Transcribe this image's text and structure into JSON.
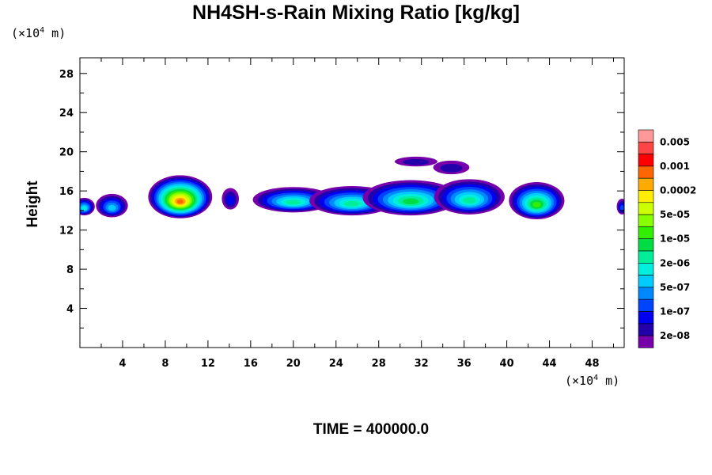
{
  "title": "NH4SH-s-Rain Mixing Ratio [kg/kg]",
  "time_label": "TIME = 400000.0",
  "axis_unit_prefix": "(×10",
  "axis_unit_exp": "4",
  "axis_unit_suffix": " m)",
  "chart_data": {
    "type": "heatmap",
    "title": "NH4SH-s-Rain Mixing Ratio [kg/kg]",
    "xlabel": "",
    "ylabel": "Height",
    "x_unit": "×10^4 m",
    "y_unit": "×10^4 m",
    "xlim": [
      0,
      51
    ],
    "ylim": [
      0,
      29.6
    ],
    "x_ticks": [
      4,
      8,
      12,
      16,
      20,
      24,
      28,
      32,
      36,
      40,
      44,
      48
    ],
    "y_ticks": [
      4,
      8,
      12,
      16,
      20,
      24,
      28
    ],
    "colorbar": {
      "labels": [
        "0.005",
        "0.001",
        "0.0002",
        "5e-05",
        "1e-05",
        "2e-06",
        "5e-07",
        "1e-07",
        "2e-08"
      ],
      "colors": [
        "#ff9999",
        "#ff4444",
        "#ff0000",
        "#ff6600",
        "#ffaa00",
        "#ffee00",
        "#ccff00",
        "#88ff00",
        "#33ee00",
        "#00dd44",
        "#00ee99",
        "#00eedd",
        "#00ccff",
        "#0088ff",
        "#0044ff",
        "#0000ee",
        "#2200aa",
        "#7700aa"
      ]
    },
    "blobs": [
      {
        "x": 0.4,
        "y": 14.4,
        "rx": 1.0,
        "ry": 0.9,
        "peak": 7
      },
      {
        "x": 3.0,
        "y": 14.5,
        "rx": 1.5,
        "ry": 1.2,
        "peak": 6
      },
      {
        "x": 9.4,
        "y": 15.4,
        "rx": 3.0,
        "ry": 2.2,
        "peak": 15
      },
      {
        "x": 14.1,
        "y": 15.2,
        "rx": 0.8,
        "ry": 1.1,
        "peak": 3
      },
      {
        "x": 20.0,
        "y": 15.1,
        "rx": 3.8,
        "ry": 1.3,
        "peak": 8
      },
      {
        "x": 25.5,
        "y": 15.0,
        "rx": 4.0,
        "ry": 1.5,
        "peak": 8
      },
      {
        "x": 31.0,
        "y": 15.3,
        "rx": 4.5,
        "ry": 1.8,
        "peak": 9
      },
      {
        "x": 36.5,
        "y": 15.4,
        "rx": 3.3,
        "ry": 1.8,
        "peak": 8
      },
      {
        "x": 31.5,
        "y": 19.0,
        "rx": 2.0,
        "ry": 0.5,
        "peak": 2
      },
      {
        "x": 34.8,
        "y": 18.4,
        "rx": 1.7,
        "ry": 0.7,
        "peak": 2
      },
      {
        "x": 42.8,
        "y": 15.0,
        "rx": 2.6,
        "ry": 1.9,
        "peak": 10
      },
      {
        "x": 50.8,
        "y": 14.4,
        "rx": 0.5,
        "ry": 0.8,
        "peak": 4
      }
    ]
  }
}
